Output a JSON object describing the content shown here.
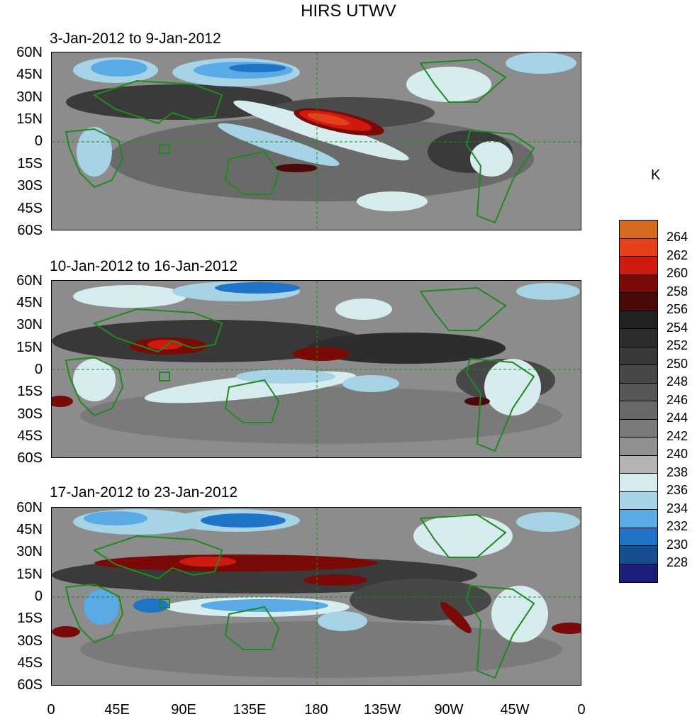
{
  "title": "HIRS UTWV",
  "panels": [
    {
      "label": "3-Jan-2012 to 9-Jan-2012"
    },
    {
      "label": "10-Jan-2012 to 16-Jan-2012"
    },
    {
      "label": "17-Jan-2012 to 23-Jan-2012"
    }
  ],
  "lat_labels": [
    "60N",
    "45N",
    "30N",
    "15N",
    "0",
    "15S",
    "30S",
    "45S",
    "60S"
  ],
  "lon_labels": [
    "0",
    "45E",
    "90E",
    "135E",
    "180",
    "135W",
    "90W",
    "45W",
    "0"
  ],
  "colorbar": {
    "unit": "K",
    "labels": [
      "264",
      "262",
      "260",
      "258",
      "256",
      "254",
      "252",
      "250",
      "248",
      "246",
      "244",
      "242",
      "240",
      "238",
      "236",
      "234",
      "232",
      "230",
      "228"
    ],
    "colors": [
      "#d66b1f",
      "#e5401a",
      "#d11a0f",
      "#7a0a08",
      "#4a0a08",
      "#222222",
      "#2d2d2d",
      "#383838",
      "#474747",
      "#575757",
      "#686868",
      "#7a7a7a",
      "#909090",
      "#b4b4b4",
      "#d6ecee",
      "#a7d3e6",
      "#5aaae6",
      "#1f74c8",
      "#154f8f",
      "#1b1f7a"
    ]
  },
  "colors": {
    "coastline": "#1e8a1e",
    "background": "#8a8a8a"
  }
}
